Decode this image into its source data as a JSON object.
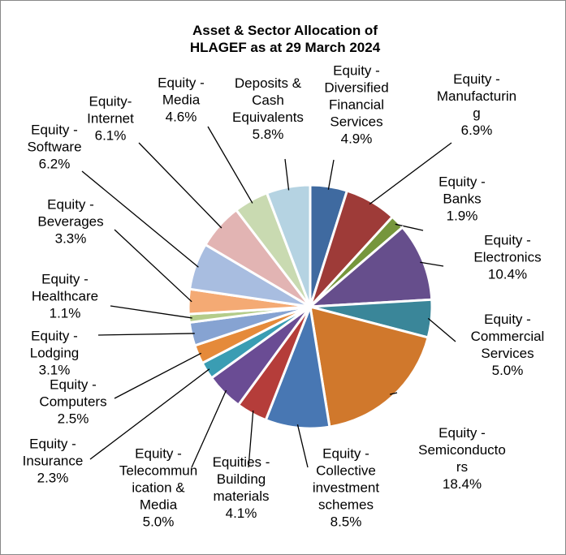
{
  "chart_data": {
    "type": "pie",
    "title": "Asset & Sector Allocation of HLAGEF as at 29 March 2024",
    "categories": [
      "Equity - Diversified Financial Services",
      "Equity - Manufacturing",
      "Equity - Banks",
      "Equity - Electronics",
      "Equity - Commercial Services",
      "Equity - Semiconductors",
      "Equity - Collective investment schemes",
      "Equities - Building materials",
      "Equity - Telecommunication & Media",
      "Equity - Insurance",
      "Equity - Computers",
      "Equity - Lodging",
      "Equity - Healthcare",
      "Equity - Beverages",
      "Equity - Software",
      "Equity-Internet",
      "Equity - Media",
      "Deposits & Cash Equivalents"
    ],
    "values": [
      4.9,
      6.9,
      1.9,
      10.4,
      5.0,
      18.4,
      8.5,
      4.1,
      5.0,
      2.3,
      2.5,
      3.1,
      1.1,
      3.3,
      6.2,
      6.1,
      4.6,
      5.8
    ],
    "value_labels": [
      "4.9%",
      "6.9%",
      "1.9%",
      "10.4%",
      "5.0%",
      "18.4%",
      "8.5%",
      "4.1%",
      "5.0%",
      "2.3%",
      "2.5%",
      "3.1%",
      "1.1%",
      "3.3%",
      "6.2%",
      "6.1%",
      "4.6%",
      "5.8%"
    ],
    "colors": [
      "#3f6aa0",
      "#9e3b38",
      "#76963c",
      "#664e8c",
      "#3a8699",
      "#d0782c",
      "#4877b3",
      "#b53d3a",
      "#6a4c94",
      "#3a9db3",
      "#e58a3a",
      "#86a3d2",
      "#b4cc8a",
      "#f4aa74",
      "#a8bde0",
      "#e2b4b3",
      "#c9dab1",
      "#b5d3e2"
    ]
  }
}
